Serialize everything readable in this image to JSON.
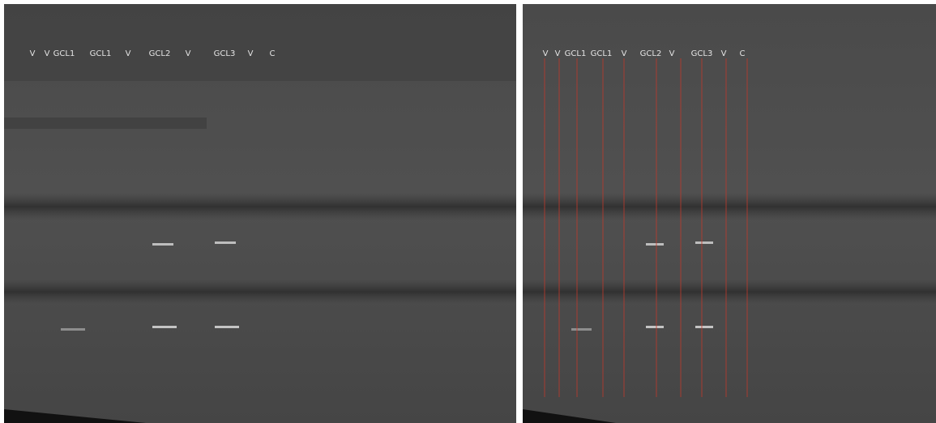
{
  "panels": [
    {
      "lane_labels": [
        "V",
        "V",
        "GCL1",
        "GCL1",
        "V",
        "GCL2",
        "V",
        "GCL3",
        "V",
        "C"
      ]
    },
    {
      "lane_labels": [
        "V",
        "V",
        "GCL1",
        "GCL1",
        "V",
        "GCL2",
        "V",
        "GCL3",
        "V",
        "C"
      ]
    }
  ]
}
